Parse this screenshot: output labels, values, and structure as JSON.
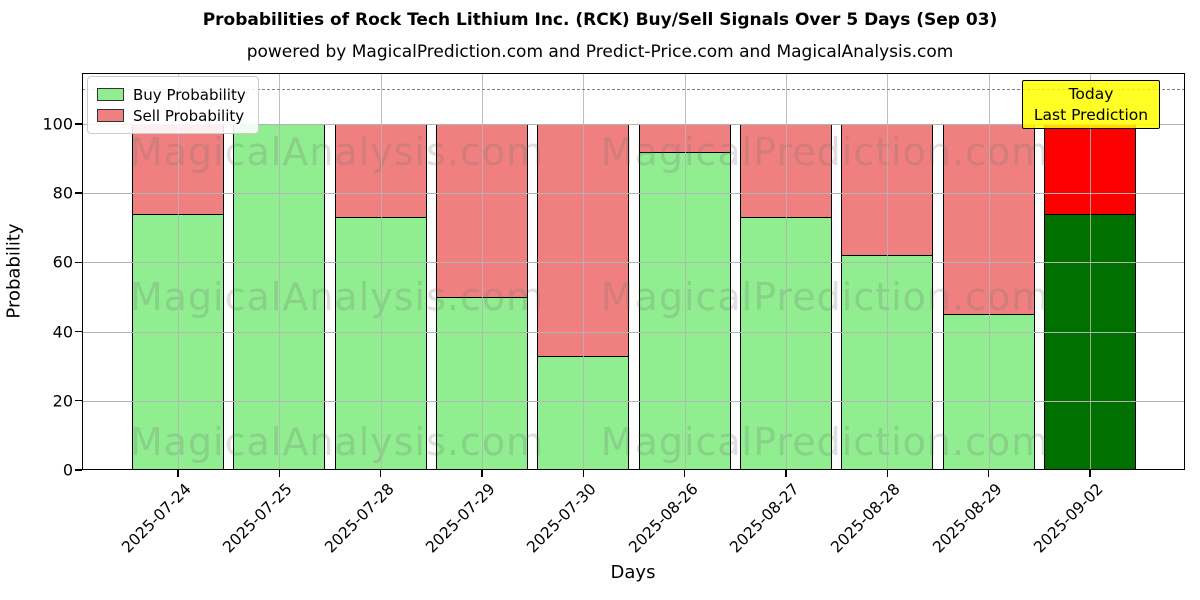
{
  "title": "Probabilities of Rock Tech Lithium Inc. (RCK) Buy/Sell Signals Over 5 Days (Sep 03)",
  "subtitle": "powered by MagicalPrediction.com and Predict-Price.com and MagicalAnalysis.com",
  "legend": {
    "buy_label": "Buy Probability",
    "sell_label": "Sell Probability"
  },
  "annotation": {
    "line1": "Today",
    "line2": "Last Prediction",
    "background": "#FFFF00"
  },
  "watermarks": [
    "MagicalAnalysis.com",
    "MagicalPrediction.com"
  ],
  "colors": {
    "buy": "#90EE90",
    "sell": "#F08080",
    "today_buy": "#007000",
    "today_sell": "#FF0000",
    "bar_edge": "#000000",
    "grid": "#b4b4b4",
    "dashed_line": "#808080"
  },
  "chart_data": {
    "type": "bar",
    "stacked": true,
    "title": "Probabilities of Rock Tech Lithium Inc. (RCK) Buy/Sell Signals Over 5 Days (Sep 03)",
    "xlabel": "Days",
    "ylabel": "Probability",
    "categories": [
      "2025-07-24",
      "2025-07-25",
      "2025-07-28",
      "2025-07-29",
      "2025-07-30",
      "2025-08-26",
      "2025-08-27",
      "2025-08-28",
      "2025-08-29",
      "2025-09-02"
    ],
    "series": [
      {
        "name": "Buy Probability",
        "values": [
          74,
          100,
          73,
          50,
          33,
          92,
          73,
          62,
          45,
          74
        ]
      },
      {
        "name": "Sell Probability",
        "values": [
          26,
          0,
          27,
          50,
          67,
          8,
          27,
          38,
          55,
          26
        ]
      }
    ],
    "today_index": 9,
    "yticks": [
      0,
      20,
      40,
      60,
      80,
      100
    ],
    "ylim": [
      0,
      114.7
    ],
    "dashed_line_y": 110,
    "grid": true,
    "legend_position": "upper left"
  }
}
